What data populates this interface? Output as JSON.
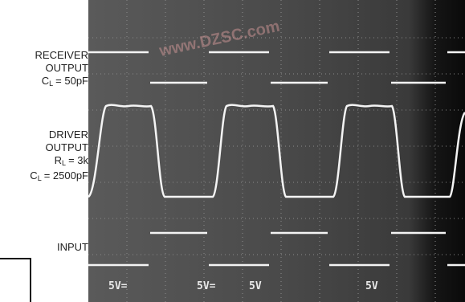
{
  "labels": {
    "receiver": {
      "lines": [
        "RECEIVER",
        "OUTPUT"
      ],
      "symbol": "C",
      "sub": "L",
      "value": "= 50pF"
    },
    "driver": {
      "lines": [
        "DRIVER",
        "OUTPUT"
      ],
      "loads": [
        {
          "symbol": "R",
          "sub": "L",
          "value": "= 3k"
        },
        {
          "symbol": "C",
          "sub": "L",
          "value": "= 2500pF"
        }
      ]
    },
    "input": {
      "text": "INPUT"
    }
  },
  "scale": [
    "5V=",
    "5V=",
    "5V",
    "5V"
  ],
  "watermark": "www.DZSC.com"
}
